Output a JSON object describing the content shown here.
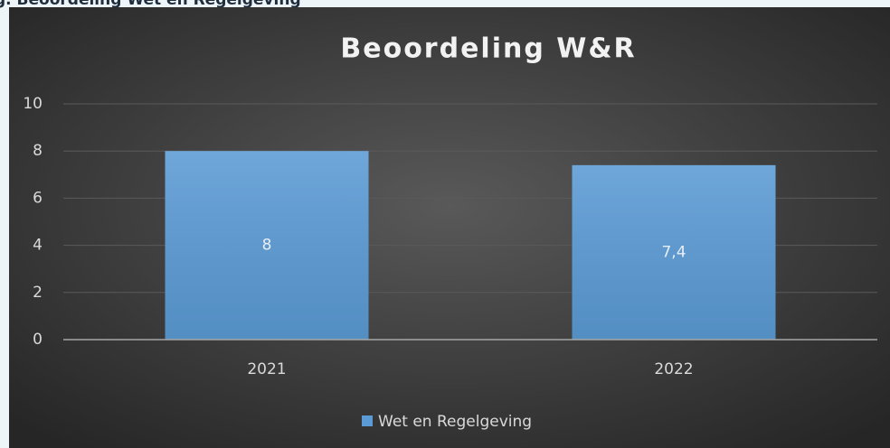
{
  "caption": "g. Beoordeling Wet en Regelgeving",
  "chart_data": {
    "type": "bar",
    "title": "Beoordeling W&R",
    "categories": [
      "2021",
      "2022"
    ],
    "series": [
      {
        "name": "Wet en Regelgeving",
        "color": "#5b9bd5",
        "values": [
          8,
          7.4
        ],
        "value_labels": [
          "8",
          "7,4"
        ]
      }
    ],
    "ylim": [
      0,
      10
    ],
    "yticks": [
      0,
      2,
      4,
      6,
      8,
      10
    ],
    "grid": true,
    "legend": "bottom"
  }
}
